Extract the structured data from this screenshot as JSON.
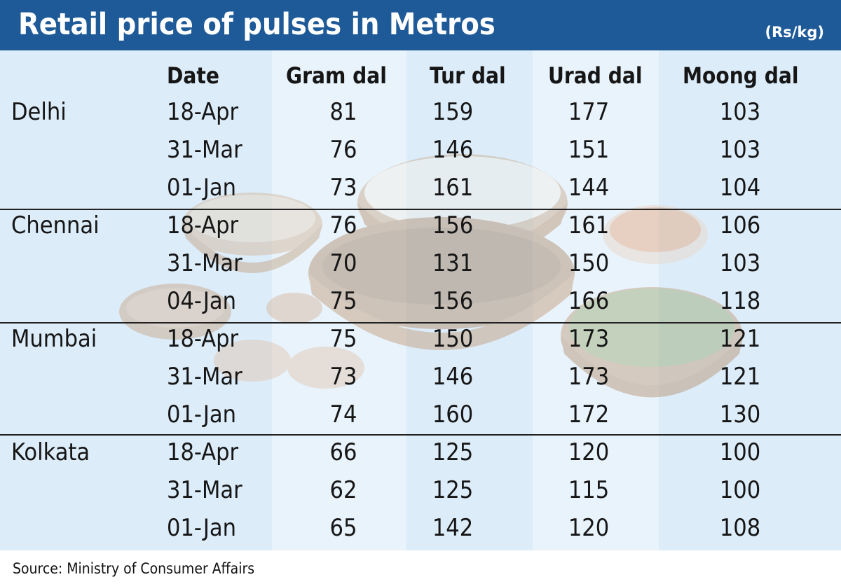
{
  "header": {
    "title": "Retail price of pulses in Metros",
    "unit": "(Rs/kg)"
  },
  "colors": {
    "header_bg": "#1f5a98",
    "panel_bg": "#dcecf9",
    "text": "#161616"
  },
  "chart_data": {
    "type": "table",
    "columns": [
      "Date",
      "Gram dal",
      "Tur dal",
      "Urad dal",
      "Moong dal"
    ],
    "groups": [
      {
        "city": "Delhi",
        "rows": [
          {
            "date": "18-Apr",
            "values": [
              "81",
              "159",
              "177",
              "103"
            ]
          },
          {
            "date": "31-Mar",
            "values": [
              "76",
              "146",
              "151",
              "103"
            ]
          },
          {
            "date": "01-Jan",
            "values": [
              "73",
              "161",
              "144",
              "104"
            ]
          }
        ]
      },
      {
        "city": "Chennai",
        "rows": [
          {
            "date": "18-Apr",
            "values": [
              "76",
              "156",
              "161",
              "106"
            ]
          },
          {
            "date": "31-Mar",
            "values": [
              "70",
              "131",
              "150",
              "103"
            ]
          },
          {
            "date": "04-Jan",
            "values": [
              "75",
              "156",
              "166",
              "118"
            ]
          }
        ]
      },
      {
        "city": "Mumbai",
        "rows": [
          {
            "date": "18-Apr",
            "values": [
              "75",
              "150",
              "173",
              "121"
            ]
          },
          {
            "date": "31-Mar",
            "values": [
              "73",
              "146",
              "173",
              "121"
            ]
          },
          {
            "date": "01-Jan",
            "values": [
              "74",
              "160",
              "172",
              "130"
            ]
          }
        ]
      },
      {
        "city": "Kolkata",
        "rows": [
          {
            "date": "18-Apr",
            "values": [
              "66",
              "125",
              "120",
              "100"
            ]
          },
          {
            "date": "31-Mar",
            "values": [
              "62",
              "125",
              "115",
              "100"
            ]
          },
          {
            "date": "01-Jan",
            "values": [
              "65",
              "142",
              "120",
              "108"
            ]
          }
        ]
      }
    ],
    "source": "Source: Ministry of Consumer Affairs"
  }
}
